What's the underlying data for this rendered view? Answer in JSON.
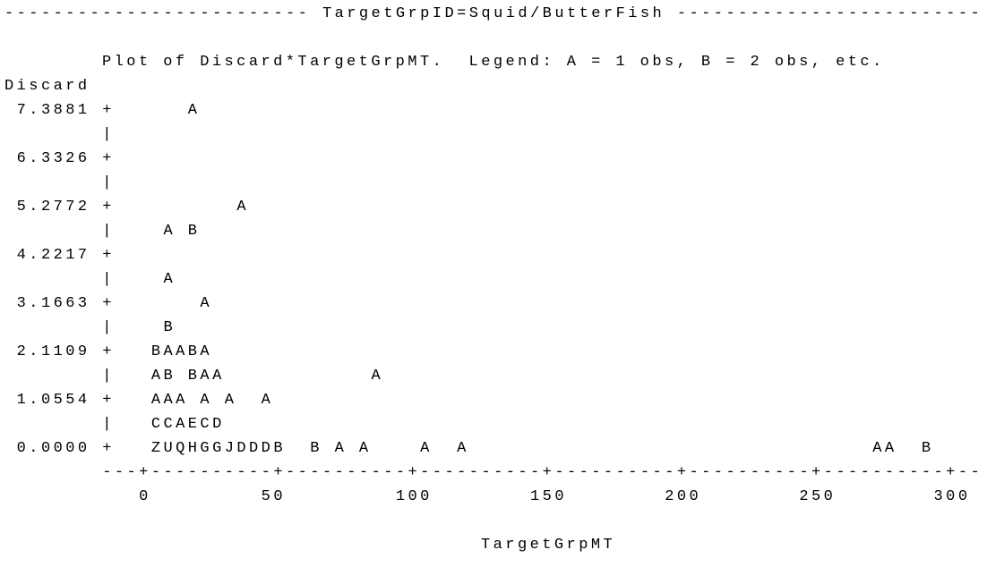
{
  "header": "------------------------- TargetGrpID=Squid/ButterFish -------------------------",
  "plot_title": "Plot of Discard*TargetGrpMT.  Legend: A = 1 obs, B = 2 obs, etc.",
  "y_axis_label": "Discard",
  "plot_rows": [
    " 7.3881 +      A",
    "        |",
    " 6.3326 +",
    "        |",
    " 5.2772 +          A",
    "        |    A B",
    " 4.2217 +",
    "        |    A",
    " 3.1663 +       A",
    "        |    B",
    " 2.1109 +   BAABA",
    "        |   AB BAA            A",
    " 1.0554 +   AAA A A  A",
    "        |   CCAECD",
    " 0.0000 +   ZUQHGGJDDDB  B A A    A  A                                 AA  B"
  ],
  "x_axis_line": "        ---+----------+----------+----------+----------+----------+----------+--",
  "x_tick_labels": "           0         50         100        150        200        250        300",
  "x_axis_label": "TargetGrpMT"
}
